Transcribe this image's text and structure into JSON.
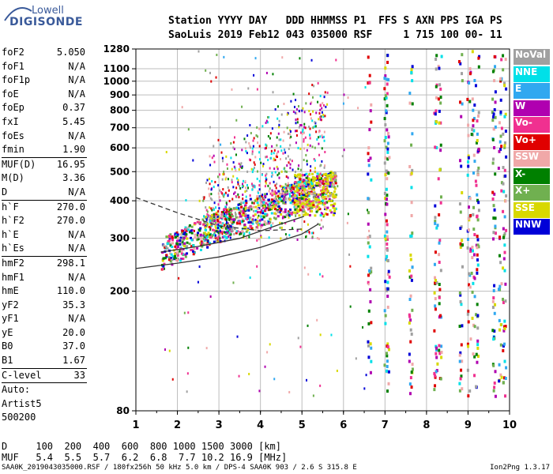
{
  "logo": {
    "line1": "Lowell",
    "line2": "DIGISONDE"
  },
  "header": {
    "line1": "Station YYYY DAY   DDD HHMMSS P1  FFS S AXN PPS IGA PS",
    "line2": "SaoLuis 2019 Feb12 043 035000 RSF     1 715 100 00- 11"
  },
  "params": [
    {
      "k": "foF2",
      "v": "5.050"
    },
    {
      "k": "foF1",
      "v": "N/A"
    },
    {
      "k": "foF1p",
      "v": "N/A"
    },
    {
      "k": "foE",
      "v": "N/A"
    },
    {
      "k": "foEp",
      "v": "0.37"
    },
    {
      "k": "fxI",
      "v": "5.45"
    },
    {
      "k": "foEs",
      "v": "N/A"
    },
    {
      "k": "fmin",
      "v": "1.90"
    },
    {
      "sep": true
    },
    {
      "k": "MUF(D)",
      "v": "16.95"
    },
    {
      "k": "M(D)",
      "v": "3.36"
    },
    {
      "k": "D",
      "v": "N/A"
    },
    {
      "sep": true
    },
    {
      "k": "h`F",
      "v": "270.0"
    },
    {
      "k": "h`F2",
      "v": "270.0"
    },
    {
      "k": "h`E",
      "v": "N/A"
    },
    {
      "k": "h`Es",
      "v": "N/A"
    },
    {
      "sep": true
    },
    {
      "k": "hmF2",
      "v": "298.1"
    },
    {
      "k": "hmF1",
      "v": "N/A"
    },
    {
      "k": "hmE",
      "v": "110.0"
    },
    {
      "k": "yF2",
      "v": "35.3"
    },
    {
      "k": "yF1",
      "v": "N/A"
    },
    {
      "k": "yE",
      "v": "20.0"
    },
    {
      "k": "B0",
      "v": "37.0"
    },
    {
      "k": "B1",
      "v": "1.67"
    },
    {
      "sep": true
    },
    {
      "k": "C-level",
      "v": "33"
    },
    {
      "sep": true
    },
    {
      "k": "Auto:",
      "v": ""
    },
    {
      "k": "Artist5",
      "v": ""
    },
    {
      "k": "500200",
      "v": ""
    }
  ],
  "muf_table": {
    "d_line": "D     100  200  400  600  800 1000 1500 3000 [km]",
    "muf_line": "MUF   5.4  5.5  5.7  6.2  6.8  7.7 10.2 16.9 [MHz]"
  },
  "footer": {
    "left": "SAA0K_2019043035000.RSF / 180fx256h 50 kHz 5.0 km / DPS-4 SAA0K 903 / 2.6 S 315.8 E",
    "right": "Ion2Png 1.3.17"
  },
  "legend": [
    {
      "label": "NoVal",
      "color": "#a0a0a0"
    },
    {
      "label": "NNE",
      "color": "#00e0e8"
    },
    {
      "label": "E",
      "color": "#30a8f0"
    },
    {
      "label": "W",
      "color": "#b000b0"
    },
    {
      "label": "Vo-",
      "color": "#f03090"
    },
    {
      "label": "Vo+",
      "color": "#e00000"
    },
    {
      "label": "SSW",
      "color": "#f0a8a8"
    },
    {
      "label": "X-",
      "color": "#008000"
    },
    {
      "label": "X+",
      "color": "#70b050"
    },
    {
      "label": "SSE",
      "color": "#d8d800"
    },
    {
      "label": "NNW",
      "color": "#0000d8"
    }
  ],
  "chart_data": {
    "type": "scatter",
    "xlabel": "",
    "ylabel": "",
    "xlim": [
      1,
      10
    ],
    "ylim": [
      80,
      1280
    ],
    "y_scale": "log",
    "x_ticks": [
      "1",
      "2",
      "3",
      "4",
      "5",
      "6",
      "7",
      "8",
      "9",
      "10"
    ],
    "y_ticks": [
      "80",
      "200",
      "300",
      "400",
      "500",
      "600",
      "700",
      "800",
      "900",
      "1000",
      "1100",
      "1280"
    ],
    "grid": true,
    "profile_curves": [
      {
        "style": "solid",
        "points": [
          [
            1,
            238
          ],
          [
            2,
            248
          ],
          [
            3,
            260
          ],
          [
            4,
            280
          ],
          [
            5,
            310
          ],
          [
            5.4,
            335
          ]
        ]
      },
      {
        "style": "dashed",
        "points": [
          [
            1,
            410
          ],
          [
            2,
            365
          ],
          [
            3,
            330
          ],
          [
            4,
            318
          ],
          [
            5,
            322
          ]
        ]
      },
      {
        "style": "solid",
        "points": [
          [
            1.6,
            270
          ],
          [
            2.5,
            282
          ],
          [
            3.5,
            300
          ],
          [
            4.5,
            335
          ],
          [
            5.05,
            355
          ]
        ]
      }
    ],
    "trace_regions": [
      {
        "x": [
          1.6,
          5.8
        ],
        "y_center": "270+45*(x-1.6)",
        "spread": 0.12,
        "n": 900
      },
      {
        "x": [
          2.6,
          5.6
        ],
        "y": [
          300,
          900
        ],
        "n": 700
      },
      {
        "x": [
          4.8,
          5.8
        ],
        "y": [
          360,
          500
        ],
        "n": 200
      }
    ],
    "vertical_streaks_x": [
      6.6,
      7.0,
      7.05,
      7.6,
      8.2,
      8.3,
      8.8,
      9.0,
      9.1,
      9.2,
      9.6,
      9.75,
      9.85
    ]
  }
}
